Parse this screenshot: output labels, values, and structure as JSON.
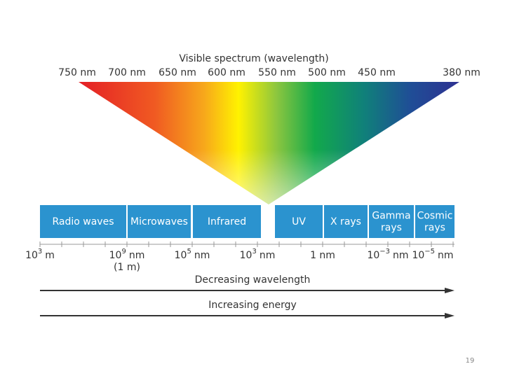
{
  "title": "Visible spectrum (wavelength)",
  "wavelengths": [
    "750 nm",
    "700 nm",
    "650 nm",
    "600 nm",
    "550 nm",
    "500 nm",
    "450 nm",
    "380 nm"
  ],
  "bands": [
    [
      "Radio waves"
    ],
    [
      "Microwaves"
    ],
    [
      "Infrared"
    ],
    [
      "UV"
    ],
    [
      "X rays"
    ],
    [
      "Gamma",
      "rays"
    ],
    [
      "Cosmic",
      "rays"
    ]
  ],
  "scale": [
    {
      "base": "10",
      "exp": "3",
      "unit": "m"
    },
    {
      "base": "10",
      "exp": "9",
      "unit": "nm",
      "note": "(1 m)"
    },
    {
      "base": "10",
      "exp": "5",
      "unit": "nm"
    },
    {
      "base": "10",
      "exp": "3",
      "unit": "nm"
    },
    {
      "text": "1 nm"
    },
    {
      "base": "10",
      "exp": "−3",
      "unit": "nm"
    },
    {
      "base": "10",
      "exp": "−5",
      "unit": "nm"
    }
  ],
  "arrows": [
    "Decreasing wavelength",
    "Increasing energy"
  ],
  "page_number": "19"
}
